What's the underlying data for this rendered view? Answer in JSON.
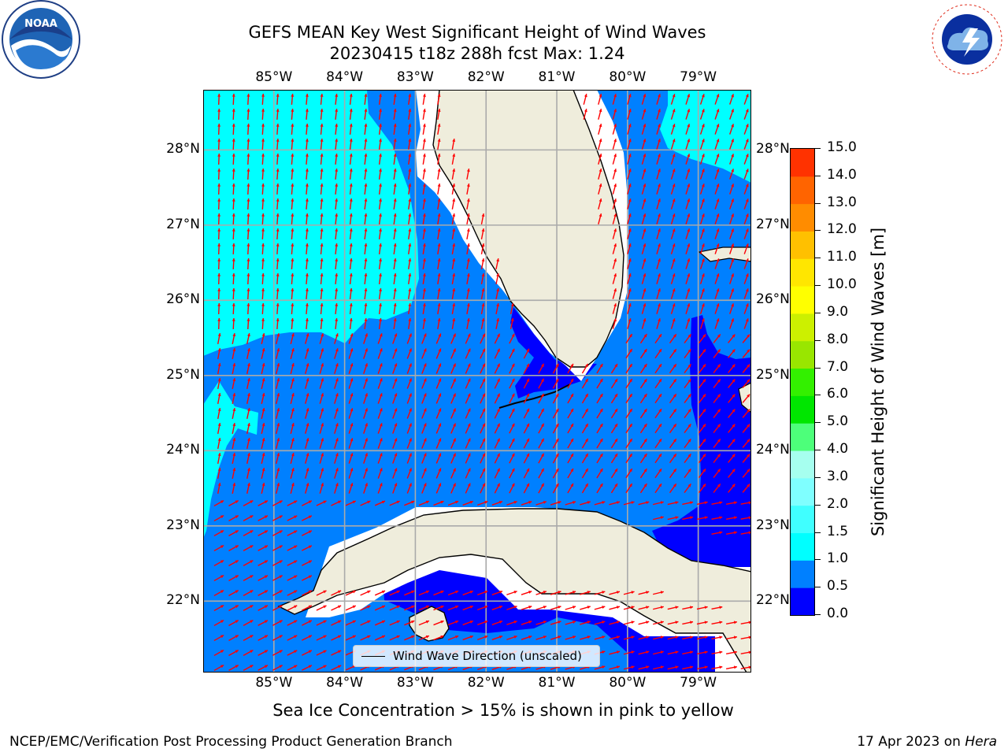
{
  "title": {
    "line1": "GEFS MEAN Key West Significant Height of Wind Waves",
    "line2": "20230415 t18z 288h fcst   Max: 1.24"
  },
  "map": {
    "lon_labels": [
      "85°W",
      "84°W",
      "83°W",
      "82°W",
      "81°W",
      "80°W",
      "79°W"
    ],
    "lat_labels": [
      "28°N",
      "27°N",
      "26°N",
      "25°N",
      "24°N",
      "23°N",
      "22°N"
    ],
    "lon_range": [
      -86.0,
      -78.25
    ],
    "lat_range": [
      21.05,
      28.8
    ],
    "legend_label": "Wind Wave Direction (unscaled)",
    "arrow_color": "#ff0000",
    "land_color": "#efeddc"
  },
  "colorbar": {
    "label": "Significant Height of Wind Waves [m]",
    "ticks": [
      "0.0",
      "0.5",
      "1.0",
      "1.5",
      "2.0",
      "3.0",
      "4.0",
      "5.0",
      "6.0",
      "7.0",
      "8.0",
      "9.0",
      "10.0",
      "11.0",
      "12.0",
      "13.0",
      "14.0",
      "15.0"
    ],
    "colors": [
      "#0000ff",
      "#0080ff",
      "#00ffff",
      "#40ffff",
      "#7fffff",
      "#a6ffef",
      "#4dff7a",
      "#00e600",
      "#33f000",
      "#99e600",
      "#ccf000",
      "#ffff00",
      "#ffe600",
      "#ffc000",
      "#ff8c00",
      "#ff6400",
      "#ff3200",
      "#ff0000"
    ]
  },
  "note": "Sea Ice Concentration > 15% is shown in pink to yellow",
  "footer": {
    "left": "NCEP/EMC/Verification Post Processing Product Generation Branch",
    "right_prefix": "17 Apr 2023 on ",
    "right_host": "Hera"
  },
  "logos": {
    "noaa": "NOAA",
    "nws": "NATIONAL WEATHER SERVICE"
  }
}
